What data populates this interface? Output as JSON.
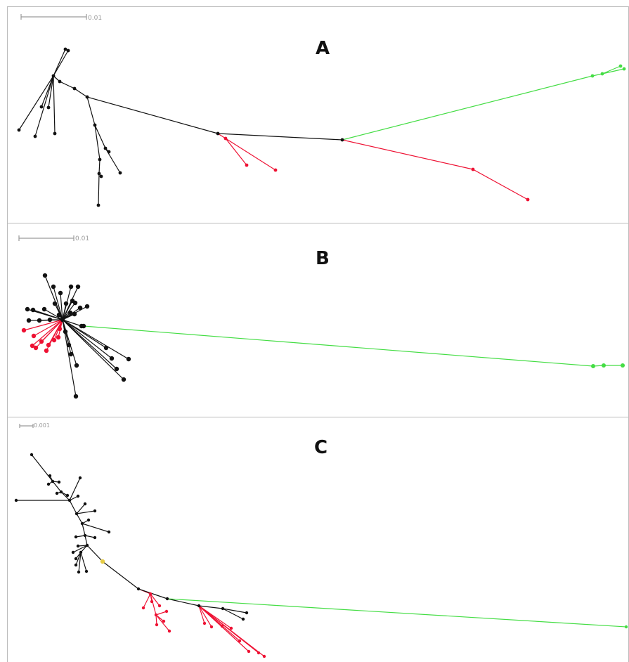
{
  "panels": [
    {
      "letter": "A",
      "scale_label": "0.01"
    },
    {
      "letter": "B",
      "scale_label": "0.01"
    },
    {
      "letter": "C",
      "scale_label": "0.001"
    }
  ],
  "colors": {
    "ingroup": "#111111",
    "clade_red": "#ee1133",
    "clade_green": "#44dd44",
    "clade_yellow": "#e6cc44",
    "scale_bar": "#9a9a9a",
    "border": "#bcbcbc"
  }
}
